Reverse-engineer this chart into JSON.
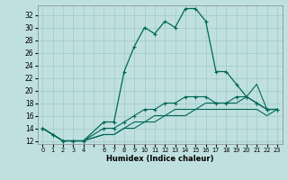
{
  "title": "",
  "xlabel": "Humidex (Indice chaleur)",
  "bg_color": "#c0e0e0",
  "grid_color": "#a0c8c8",
  "line_color": "#006858",
  "xlim": [
    -0.5,
    23.5
  ],
  "ylim": [
    11.5,
    33.5
  ],
  "xticks": [
    0,
    1,
    2,
    3,
    4,
    5,
    6,
    7,
    8,
    9,
    10,
    11,
    12,
    13,
    14,
    15,
    16,
    17,
    18,
    19,
    20,
    21,
    22,
    23
  ],
  "xtick_labels": [
    "0",
    "1",
    "2",
    "3",
    "4",
    "",
    "6",
    "7",
    "8",
    "9",
    "10",
    "11",
    "12",
    "13",
    "14",
    "15",
    "16",
    "17",
    "18",
    "19",
    "20",
    "21",
    "22",
    "23"
  ],
  "yticks": [
    12,
    14,
    16,
    18,
    20,
    22,
    24,
    26,
    28,
    30,
    32
  ],
  "series": [
    {
      "x": [
        0,
        1,
        2,
        3,
        4,
        6,
        7,
        8,
        9,
        10,
        11,
        12,
        13,
        14,
        15,
        16,
        17,
        18,
        19,
        20,
        21,
        22,
        23
      ],
      "y": [
        14,
        13,
        12,
        12,
        12,
        15,
        15,
        23,
        27,
        30,
        29,
        31,
        30,
        33,
        33,
        31,
        23,
        23,
        21,
        19,
        18,
        17,
        17
      ],
      "marker": "+",
      "lw": 0.9,
      "ms": 3.5
    },
    {
      "x": [
        0,
        1,
        2,
        3,
        4,
        6,
        7,
        8,
        9,
        10,
        11,
        12,
        13,
        14,
        15,
        16,
        17,
        18,
        19,
        20,
        21,
        22,
        23
      ],
      "y": [
        14,
        13,
        12,
        12,
        12,
        14,
        14,
        15,
        16,
        17,
        17,
        18,
        18,
        19,
        19,
        19,
        18,
        18,
        19,
        19,
        18,
        17,
        17
      ],
      "marker": "+",
      "lw": 0.8,
      "ms": 3.0
    },
    {
      "x": [
        0,
        1,
        2,
        3,
        4,
        6,
        7,
        8,
        9,
        10,
        11,
        12,
        13,
        14,
        15,
        16,
        17,
        18,
        19,
        20,
        21,
        22,
        23
      ],
      "y": [
        14,
        13,
        12,
        12,
        12,
        13,
        13,
        14,
        14,
        15,
        15,
        16,
        16,
        16,
        17,
        17,
        17,
        17,
        17,
        17,
        17,
        16,
        17
      ],
      "marker": null,
      "lw": 0.8,
      "ms": 0
    },
    {
      "x": [
        0,
        1,
        2,
        3,
        4,
        6,
        7,
        8,
        9,
        10,
        11,
        12,
        13,
        14,
        15,
        16,
        17,
        18,
        19,
        20,
        21,
        22,
        23
      ],
      "y": [
        14,
        13,
        12,
        12,
        12,
        13,
        13,
        14,
        15,
        15,
        16,
        16,
        17,
        17,
        17,
        18,
        18,
        18,
        18,
        19,
        21,
        17,
        17
      ],
      "marker": null,
      "lw": 0.8,
      "ms": 0
    }
  ]
}
